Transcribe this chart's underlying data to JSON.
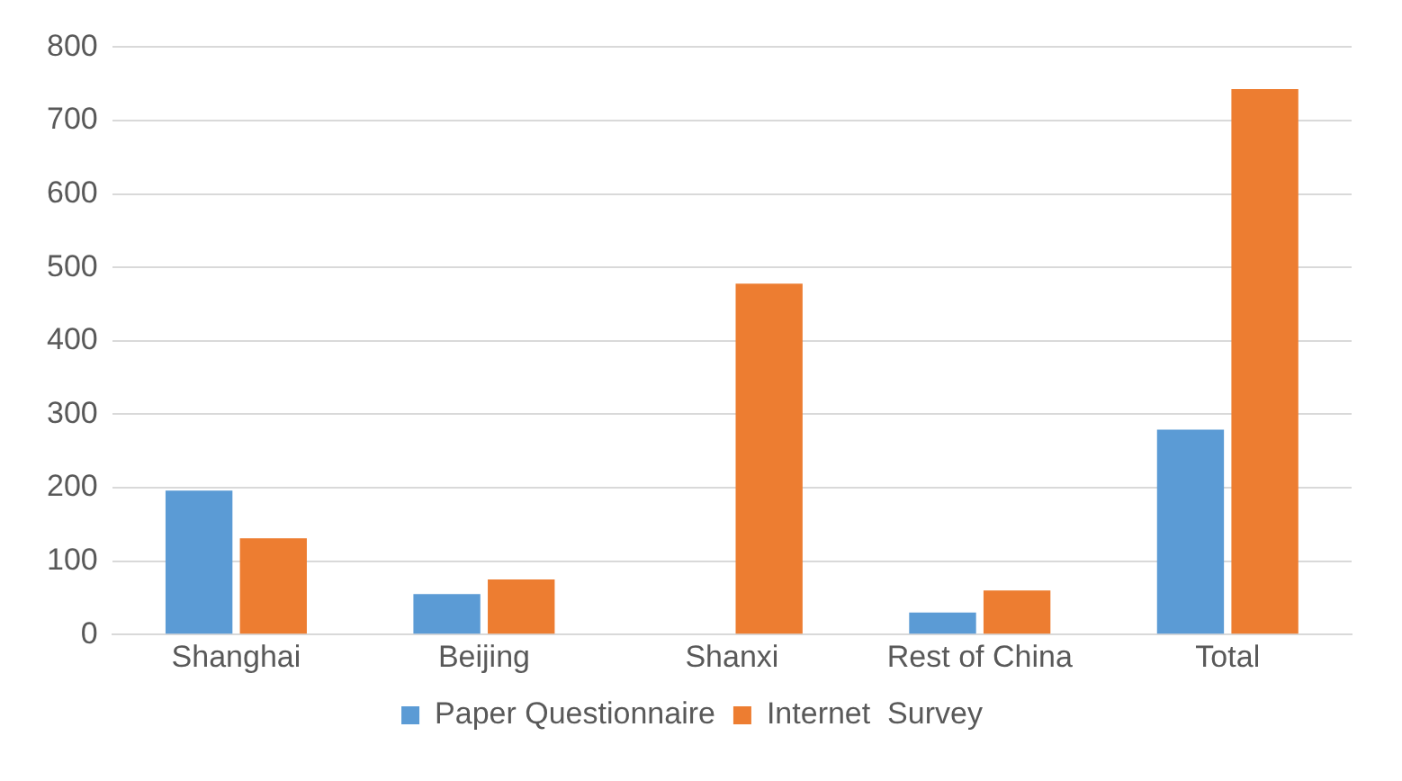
{
  "chart_data": {
    "type": "bar",
    "categories": [
      "Shanghai",
      "Beijing",
      "Shanxi",
      "Rest of China",
      "Total"
    ],
    "series": [
      {
        "name": "Paper Questionnaire",
        "color": "#5b9bd5",
        "values": [
          196,
          55,
          0,
          30,
          279
        ]
      },
      {
        "name": "Internet  Survey",
        "color": "#ed7d31",
        "values": [
          131,
          75,
          478,
          60,
          743
        ]
      }
    ],
    "ylim": [
      0,
      800
    ],
    "yticks": [
      0,
      100,
      200,
      300,
      400,
      500,
      600,
      700,
      800
    ],
    "grid": "y",
    "legend": "bottom"
  }
}
